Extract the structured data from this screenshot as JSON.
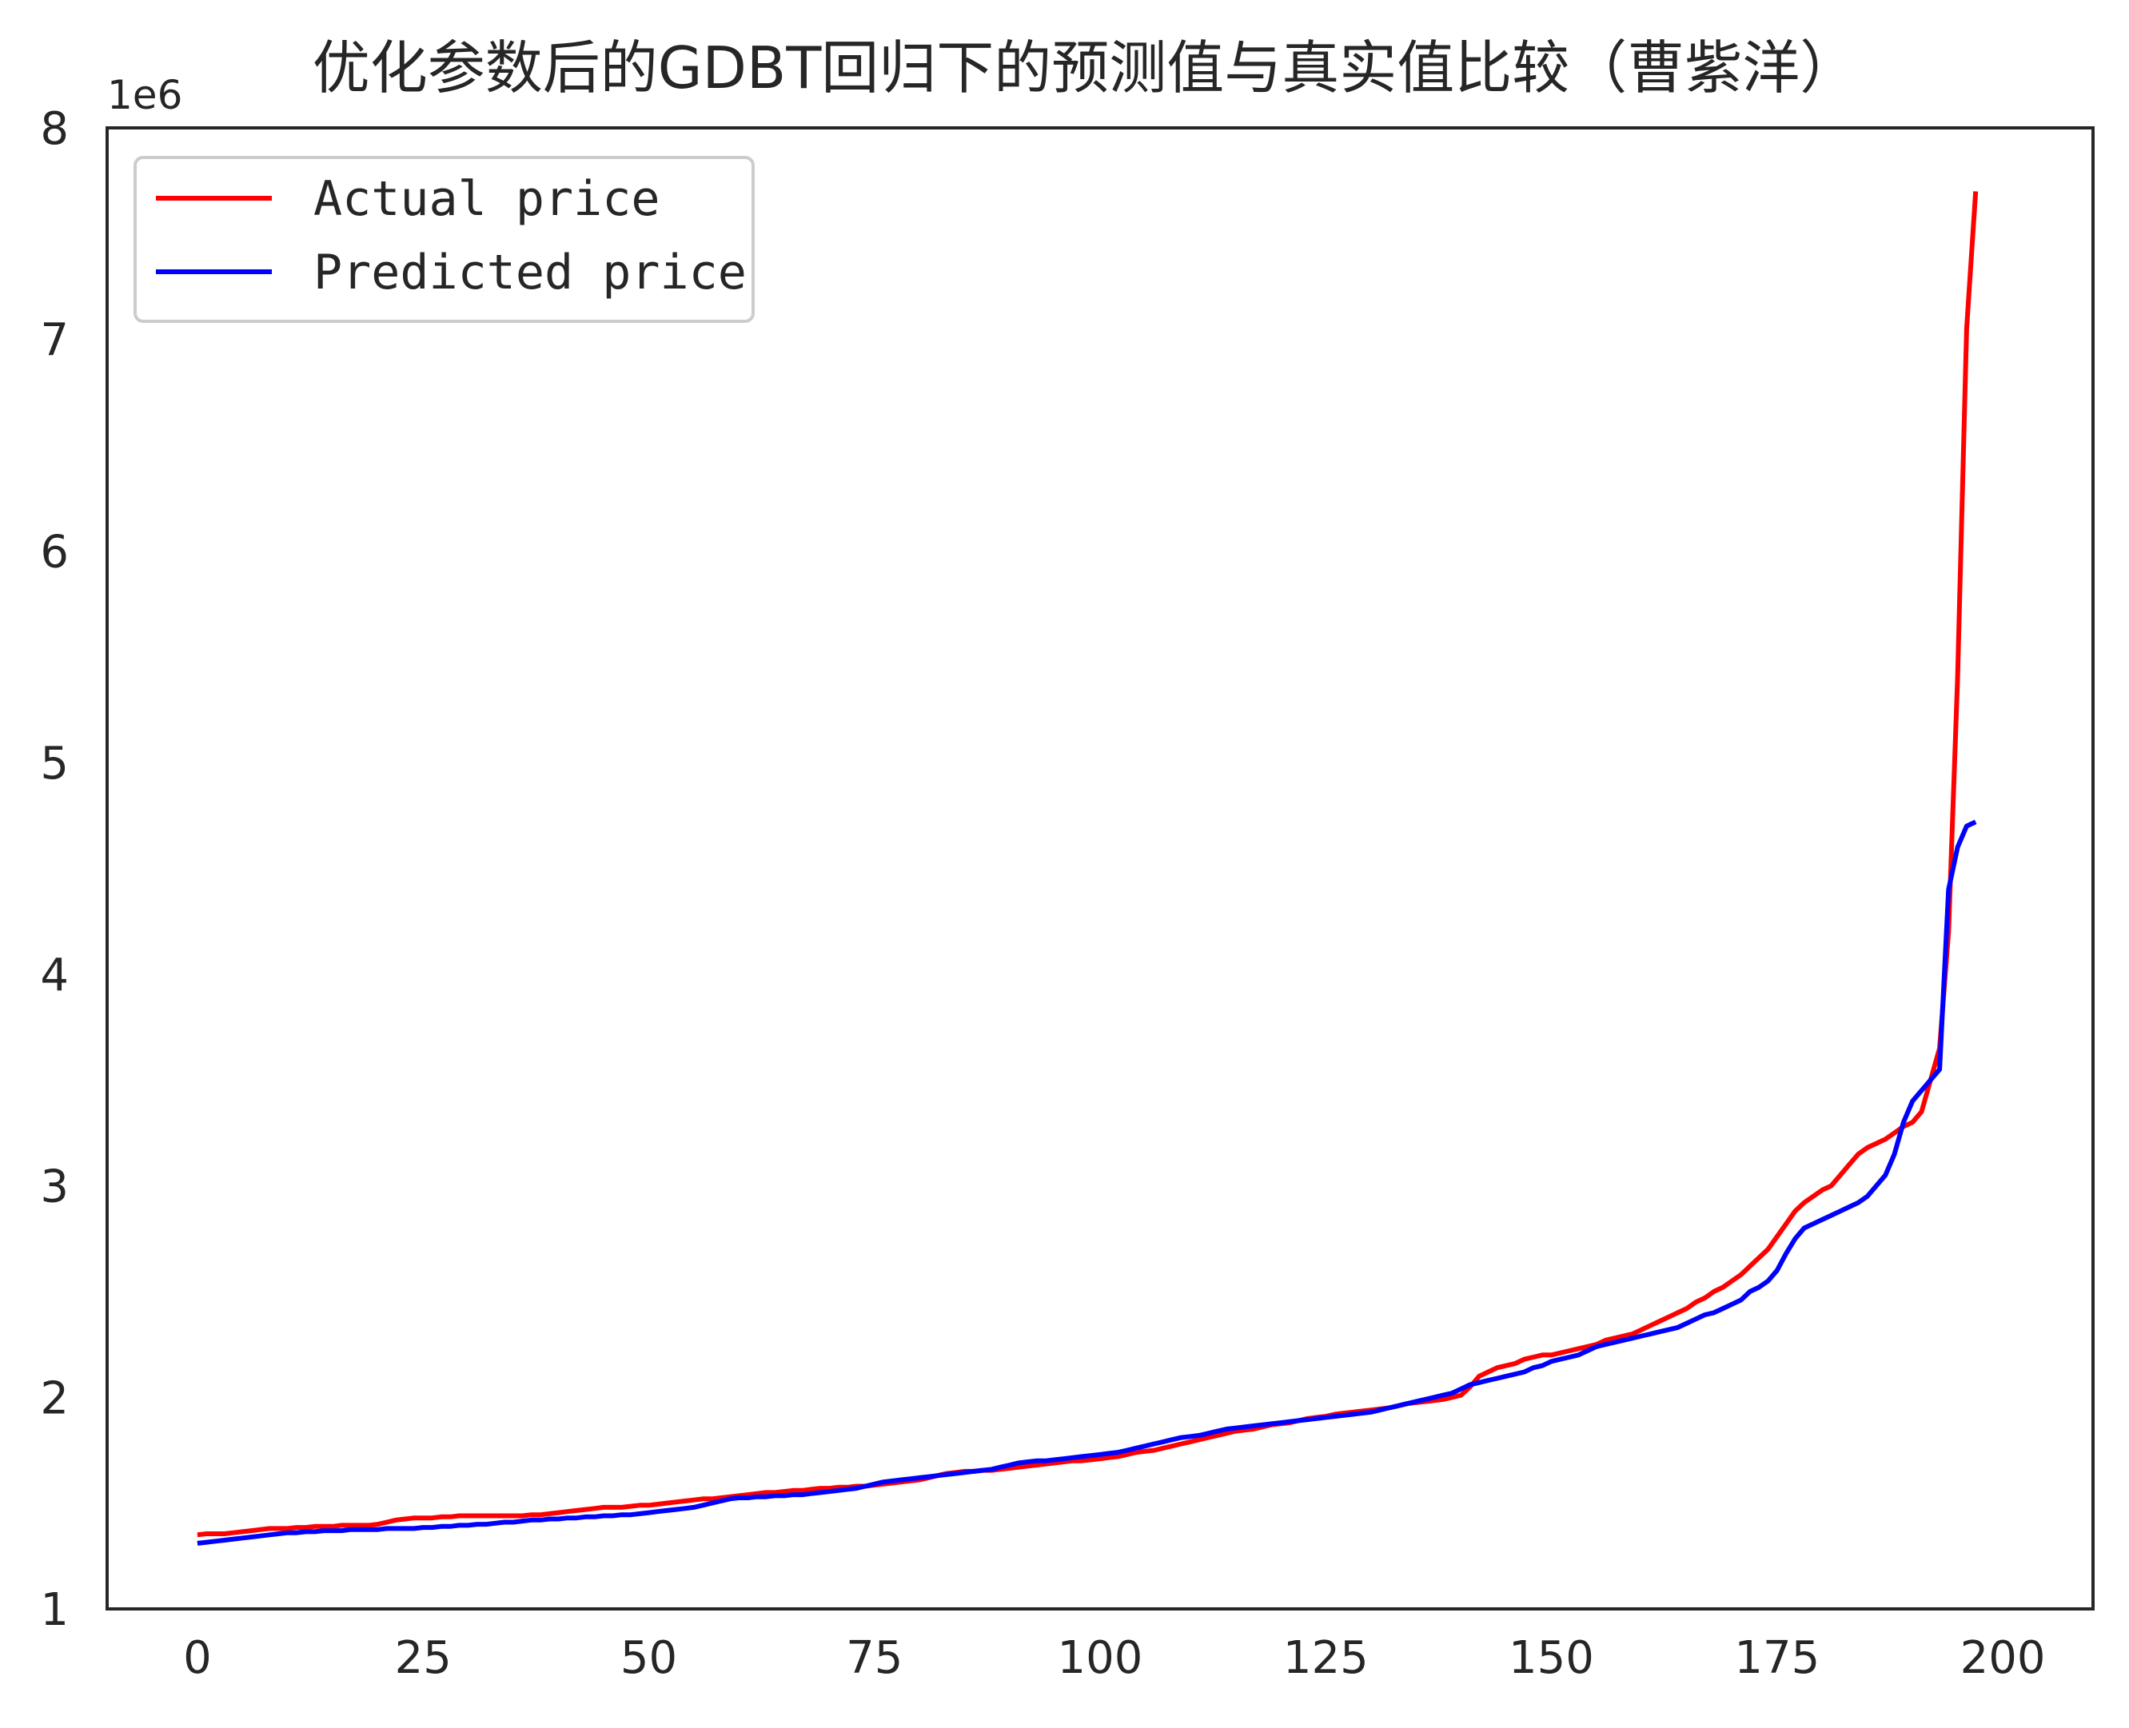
{
  "chart_data": {
    "type": "line",
    "title": "优化参数后的GDBT回归下的预测值与真实值比较（曹紫洋）",
    "xlabel": "",
    "ylabel": "",
    "y_offset_label": "1e6",
    "xlim": [
      -10,
      210
    ],
    "ylim": [
      1,
      8
    ],
    "xticks": [
      0,
      25,
      50,
      75,
      100,
      125,
      150,
      175,
      200
    ],
    "yticks": [
      1,
      2,
      3,
      4,
      5,
      6,
      7,
      8
    ],
    "grid": false,
    "legend_position": "top-left",
    "x_start": 0,
    "x_step": 1,
    "series": [
      {
        "name": "Actual price",
        "color": "#ff0000",
        "values": [
          1.35,
          1.355,
          1.355,
          1.355,
          1.36,
          1.365,
          1.37,
          1.375,
          1.38,
          1.38,
          1.38,
          1.385,
          1.385,
          1.39,
          1.39,
          1.39,
          1.395,
          1.395,
          1.395,
          1.395,
          1.4,
          1.41,
          1.42,
          1.425,
          1.43,
          1.43,
          1.43,
          1.435,
          1.435,
          1.44,
          1.44,
          1.44,
          1.44,
          1.44,
          1.44,
          1.44,
          1.44,
          1.445,
          1.445,
          1.45,
          1.455,
          1.46,
          1.465,
          1.47,
          1.475,
          1.48,
          1.48,
          1.48,
          1.485,
          1.49,
          1.49,
          1.495,
          1.5,
          1.505,
          1.51,
          1.515,
          1.52,
          1.52,
          1.525,
          1.53,
          1.535,
          1.54,
          1.545,
          1.55,
          1.55,
          1.555,
          1.56,
          1.56,
          1.565,
          1.57,
          1.57,
          1.575,
          1.575,
          1.58,
          1.58,
          1.585,
          1.59,
          1.595,
          1.6,
          1.605,
          1.61,
          1.62,
          1.63,
          1.64,
          1.645,
          1.65,
          1.65,
          1.655,
          1.655,
          1.66,
          1.665,
          1.67,
          1.675,
          1.68,
          1.685,
          1.69,
          1.695,
          1.7,
          1.7,
          1.705,
          1.71,
          1.715,
          1.72,
          1.73,
          1.74,
          1.745,
          1.75,
          1.76,
          1.77,
          1.78,
          1.79,
          1.8,
          1.81,
          1.82,
          1.83,
          1.84,
          1.845,
          1.85,
          1.86,
          1.87,
          1.875,
          1.88,
          1.89,
          1.9,
          1.905,
          1.91,
          1.92,
          1.925,
          1.93,
          1.935,
          1.94,
          1.945,
          1.95,
          1.96,
          1.97,
          1.975,
          1.98,
          1.985,
          1.99,
          2.0,
          2.01,
          2.05,
          2.1,
          2.12,
          2.14,
          2.15,
          2.16,
          2.18,
          2.19,
          2.2,
          2.2,
          2.21,
          2.22,
          2.23,
          2.24,
          2.25,
          2.27,
          2.28,
          2.29,
          2.3,
          2.32,
          2.34,
          2.36,
          2.38,
          2.4,
          2.42,
          2.45,
          2.47,
          2.5,
          2.52,
          2.55,
          2.58,
          2.62,
          2.66,
          2.7,
          2.76,
          2.82,
          2.88,
          2.92,
          2.95,
          2.98,
          3.0,
          3.05,
          3.1,
          3.15,
          3.18,
          3.2,
          3.22,
          3.25,
          3.28,
          3.3,
          3.35,
          3.5,
          3.65,
          4.2,
          5.4,
          7.05,
          7.7
        ]
      },
      {
        "name": "Predicted price",
        "color": "#0000ff",
        "values": [
          1.31,
          1.315,
          1.32,
          1.325,
          1.33,
          1.335,
          1.34,
          1.345,
          1.35,
          1.355,
          1.36,
          1.36,
          1.365,
          1.365,
          1.37,
          1.37,
          1.37,
          1.375,
          1.375,
          1.375,
          1.375,
          1.38,
          1.38,
          1.38,
          1.38,
          1.385,
          1.385,
          1.39,
          1.39,
          1.395,
          1.395,
          1.4,
          1.4,
          1.405,
          1.41,
          1.41,
          1.415,
          1.42,
          1.42,
          1.425,
          1.425,
          1.43,
          1.43,
          1.435,
          1.435,
          1.44,
          1.44,
          1.445,
          1.445,
          1.45,
          1.455,
          1.46,
          1.465,
          1.47,
          1.475,
          1.48,
          1.49,
          1.5,
          1.51,
          1.52,
          1.525,
          1.525,
          1.53,
          1.53,
          1.535,
          1.535,
          1.54,
          1.54,
          1.545,
          1.55,
          1.555,
          1.56,
          1.565,
          1.57,
          1.58,
          1.59,
          1.6,
          1.605,
          1.61,
          1.615,
          1.62,
          1.625,
          1.63,
          1.635,
          1.64,
          1.645,
          1.65,
          1.655,
          1.66,
          1.67,
          1.68,
          1.69,
          1.695,
          1.7,
          1.7,
          1.705,
          1.71,
          1.715,
          1.72,
          1.725,
          1.73,
          1.735,
          1.74,
          1.75,
          1.76,
          1.77,
          1.78,
          1.79,
          1.8,
          1.81,
          1.815,
          1.82,
          1.83,
          1.84,
          1.85,
          1.855,
          1.86,
          1.865,
          1.87,
          1.875,
          1.88,
          1.885,
          1.89,
          1.895,
          1.9,
          1.905,
          1.91,
          1.915,
          1.92,
          1.925,
          1.93,
          1.94,
          1.95,
          1.96,
          1.97,
          1.98,
          1.99,
          2.0,
          2.01,
          2.02,
          2.04,
          2.06,
          2.07,
          2.08,
          2.09,
          2.1,
          2.11,
          2.12,
          2.14,
          2.15,
          2.17,
          2.18,
          2.19,
          2.2,
          2.22,
          2.24,
          2.25,
          2.26,
          2.27,
          2.28,
          2.29,
          2.3,
          2.31,
          2.32,
          2.33,
          2.35,
          2.37,
          2.39,
          2.4,
          2.42,
          2.44,
          2.46,
          2.5,
          2.52,
          2.55,
          2.6,
          2.68,
          2.75,
          2.8,
          2.82,
          2.84,
          2.86,
          2.88,
          2.9,
          2.92,
          2.95,
          3.0,
          3.05,
          3.15,
          3.3,
          3.4,
          3.45,
          3.5,
          3.55,
          4.4,
          4.6,
          4.7,
          4.72
        ]
      }
    ]
  }
}
